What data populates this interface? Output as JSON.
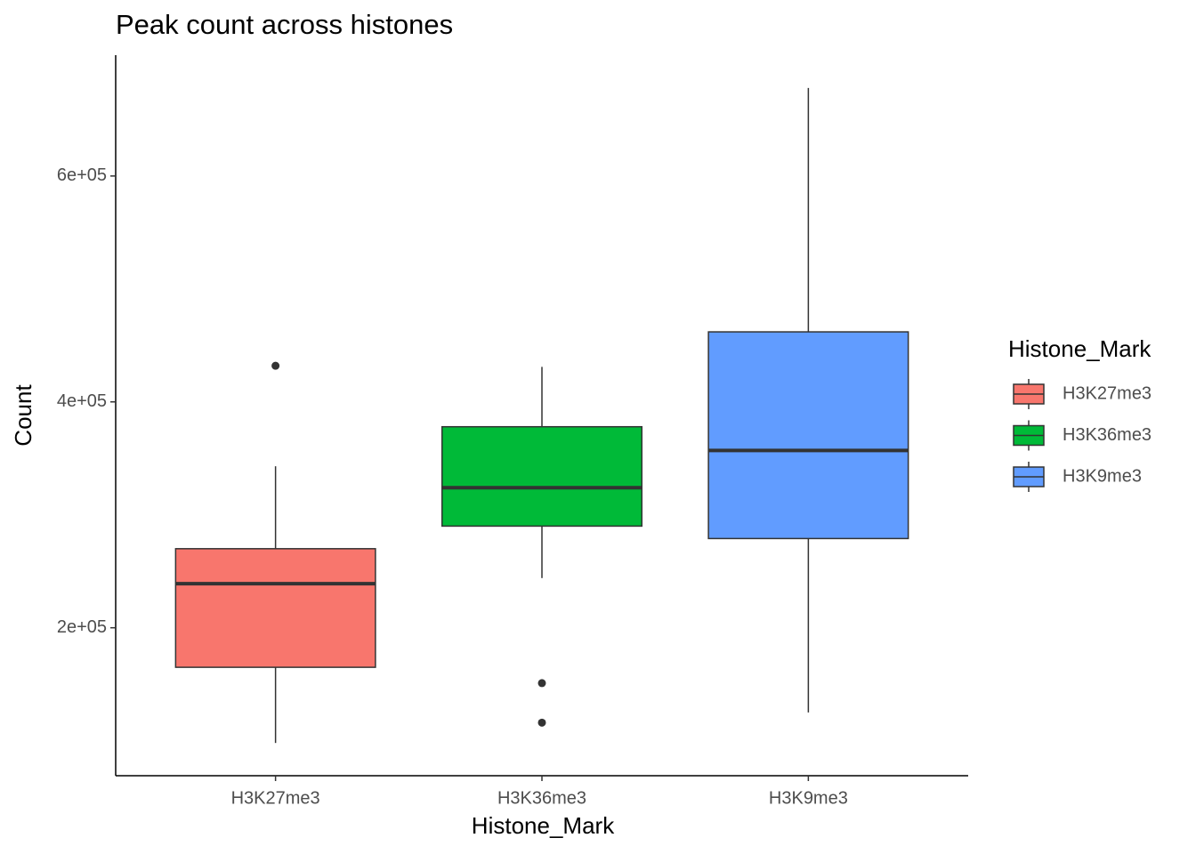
{
  "chart_data": {
    "type": "box",
    "title": "Peak count across histones",
    "x_label": "Histone_Mark",
    "y_label": "Count",
    "categories": [
      "H3K27me3",
      "H3K36me3",
      "H3K9me3"
    ],
    "colors": [
      "#F8766D",
      "#00BA38",
      "#619CFF"
    ],
    "boxes": [
      {
        "min": 98000,
        "q1": 165000,
        "median": 239000,
        "q3": 270000,
        "max": 343000,
        "outliers": [
          432000
        ]
      },
      {
        "min": 244000,
        "q1": 290000,
        "median": 324000,
        "q3": 378000,
        "max": 431000,
        "outliers": [
          151000,
          116000
        ]
      },
      {
        "min": 125000,
        "q1": 279000,
        "median": 357000,
        "q3": 462000,
        "max": 678000,
        "outliers": []
      }
    ],
    "ylim": [
      69000,
      707000
    ],
    "yticks": [
      {
        "value": 200000,
        "label": "2e+05"
      },
      {
        "value": 400000,
        "label": "4e+05"
      },
      {
        "value": 600000,
        "label": "6e+05"
      }
    ],
    "legend": {
      "title": "Histone_Mark",
      "position": "right"
    }
  }
}
